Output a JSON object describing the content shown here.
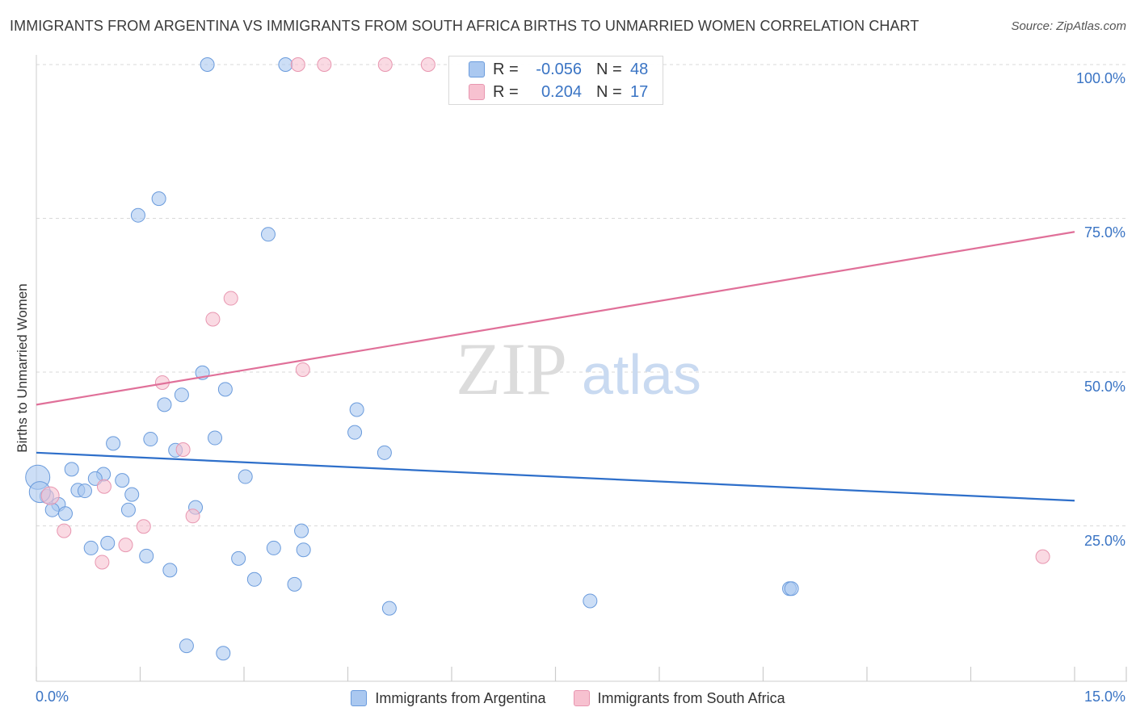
{
  "title": "IMMIGRANTS FROM ARGENTINA VS IMMIGRANTS FROM SOUTH AFRICA BIRTHS TO UNMARRIED WOMEN CORRELATION CHART",
  "source": "Source: ZipAtlas.com",
  "watermark": {
    "zip": "ZIP",
    "atlas": "atlas"
  },
  "colors": {
    "blue_fill": "#aac8f0",
    "blue_stroke": "#6a9bdc",
    "blue_line": "#2e6fca",
    "pink_fill": "#f7c1d0",
    "pink_stroke": "#e896b0",
    "pink_line": "#e07099",
    "axis_text": "#3a74c4",
    "grid": "#d9d9d9"
  },
  "stats": {
    "r_label": "R =",
    "n_label": "N =",
    "series": [
      {
        "r": "-0.056",
        "n": "48"
      },
      {
        "r": "0.204",
        "n": "17"
      }
    ]
  },
  "chart_data": {
    "type": "scatter",
    "title": "IMMIGRANTS FROM ARGENTINA VS IMMIGRANTS FROM SOUTH AFRICA BIRTHS TO UNMARRIED WOMEN CORRELATION CHART",
    "xlabel": "",
    "ylabel": "Births to Unmarried Women",
    "xlim": [
      0,
      15
    ],
    "ylim": [
      0,
      100
    ],
    "x_tick_labels": [
      "0.0%",
      "15.0%"
    ],
    "y_tick_labels": [
      "100.0%",
      "75.0%",
      "50.0%",
      "25.0%"
    ],
    "y_ticks": [
      100,
      75,
      50,
      25
    ],
    "legend_position": "bottom",
    "series": [
      {
        "name": "Immigrants from Argentina",
        "color": "blue",
        "r": -0.056,
        "n": 48,
        "trend": [
          [
            0,
            36.9
          ],
          [
            15,
            29.1
          ]
        ],
        "points": [
          [
            2.47,
            100
          ],
          [
            3.6,
            100
          ],
          [
            1.77,
            78.2
          ],
          [
            1.47,
            75.5
          ],
          [
            3.35,
            72.4
          ],
          [
            2.4,
            49.9
          ],
          [
            2.73,
            47.2
          ],
          [
            2.1,
            46.3
          ],
          [
            1.85,
            44.7
          ],
          [
            4.63,
            43.9
          ],
          [
            4.6,
            40.2
          ],
          [
            1.65,
            39.1
          ],
          [
            2.58,
            39.3
          ],
          [
            1.11,
            38.4
          ],
          [
            5.03,
            36.9
          ],
          [
            2.01,
            37.3
          ],
          [
            0.51,
            34.2
          ],
          [
            0.97,
            33.4
          ],
          [
            0.85,
            32.7
          ],
          [
            3.02,
            33.0
          ],
          [
            1.24,
            32.4
          ],
          [
            0.6,
            30.8
          ],
          [
            0.7,
            30.7
          ],
          [
            1.38,
            30.1
          ],
          [
            0.15,
            29.8
          ],
          [
            0.32,
            28.5
          ],
          [
            0.23,
            27.6
          ],
          [
            0.42,
            27.0
          ],
          [
            1.33,
            27.6
          ],
          [
            2.3,
            28.0
          ],
          [
            3.83,
            24.2
          ],
          [
            3.43,
            21.4
          ],
          [
            3.86,
            21.1
          ],
          [
            0.79,
            21.4
          ],
          [
            1.03,
            22.2
          ],
          [
            1.59,
            20.1
          ],
          [
            2.92,
            19.7
          ],
          [
            1.93,
            17.8
          ],
          [
            3.15,
            16.3
          ],
          [
            3.73,
            15.5
          ],
          [
            10.88,
            14.8
          ],
          [
            10.91,
            14.8
          ],
          [
            8.0,
            12.8
          ],
          [
            5.1,
            11.6
          ],
          [
            2.17,
            5.5
          ],
          [
            2.7,
            4.3
          ],
          [
            0.02,
            32.9
          ],
          [
            0.05,
            30.5
          ]
        ]
      },
      {
        "name": "Immigrants from South Africa",
        "color": "pink",
        "r": 0.204,
        "n": 17,
        "trend": [
          [
            0,
            44.7
          ],
          [
            15,
            72.8
          ]
        ],
        "points": [
          [
            3.78,
            100
          ],
          [
            4.16,
            100
          ],
          [
            5.04,
            100
          ],
          [
            5.66,
            100
          ],
          [
            2.81,
            62.0
          ],
          [
            2.55,
            58.6
          ],
          [
            3.85,
            50.4
          ],
          [
            1.82,
            48.3
          ],
          [
            2.12,
            37.4
          ],
          [
            0.98,
            31.4
          ],
          [
            0.2,
            29.9
          ],
          [
            0.4,
            24.2
          ],
          [
            1.55,
            24.9
          ],
          [
            2.26,
            26.6
          ],
          [
            1.29,
            21.9
          ],
          [
            0.95,
            19.1
          ],
          [
            14.54,
            20.0
          ]
        ]
      }
    ]
  }
}
